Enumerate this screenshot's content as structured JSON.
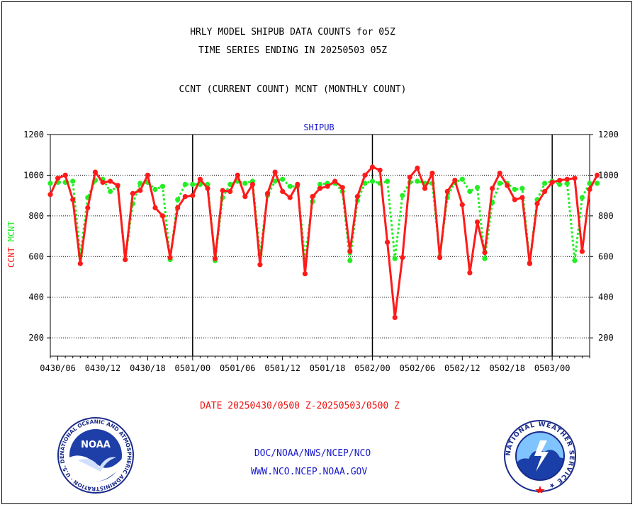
{
  "header": {
    "title_line1": "HRLY MODEL SHIPUB DATA COUNTS for 05Z",
    "title_line2": "TIME SERIES ENDING IN 20250503 05Z",
    "subtitle": "CCNT (CURRENT COUNT) MCNT (MONTHLY COUNT)"
  },
  "footer": {
    "date_range": "DATE 20250430/0500 Z-20250503/0500 Z",
    "org_path": "DOC/NOAA/NWS/NCEP/NCO",
    "website": "WWW.NCO.NCEP.NOAA.GOV"
  },
  "logos": {
    "noaa_text": "NOAA",
    "noaa_ring": "NATIONAL OCEANIC AND ATMOSPHERIC ADMINISTRATION · U.S. DEPARTMENT OF COMMERCE ·",
    "nws_ring": "NATIONAL WEATHER SERVICE ★"
  },
  "colors": {
    "ccnt": "#ff1a1a",
    "mcnt": "#22ee22",
    "label_blue": "#1a1acc",
    "date_red": "#ee1111"
  },
  "chart_data": {
    "type": "line",
    "title": "SHIPUB",
    "ylabel_left": [
      "CCNT",
      "MCNT"
    ],
    "ylim": [
      110,
      1200
    ],
    "yticks": [
      200,
      400,
      600,
      800,
      1000,
      1200
    ],
    "grid": "horizontal dotted at 1000, 800, 600, 400, 200",
    "x_unit": "hours since 20250430/0500 Z",
    "xlim": [
      0,
      72
    ],
    "xtick_hours": [
      1,
      7,
      13,
      19,
      25,
      31,
      37,
      43,
      49,
      55,
      61,
      67,
      73
    ],
    "xtick_labels": [
      "0430/06",
      "0430/12",
      "0430/18",
      "0501/00",
      "0501/06",
      "0501/12",
      "0501/18",
      "0502/00",
      "0502/06",
      "0502/12",
      "0502/18",
      "0503/00",
      ""
    ],
    "day_boundaries": [
      19,
      43,
      67
    ],
    "series": [
      {
        "name": "CCNT",
        "color": "#ff1a1a",
        "values": [
          905,
          985,
          1000,
          880,
          565,
          840,
          1015,
          965,
          970,
          950,
          585,
          910,
          925,
          1000,
          840,
          800,
          595,
          840,
          895,
          900,
          980,
          935,
          590,
          925,
          920,
          1000,
          895,
          955,
          560,
          910,
          1015,
          920,
          890,
          955,
          515,
          895,
          935,
          945,
          970,
          940,
          625,
          895,
          1000,
          1040,
          1025,
          670,
          300,
          595,
          990,
          1035,
          935,
          1010,
          595,
          920,
          975,
          855,
          520,
          770,
          620,
          935,
          1010,
          950,
          880,
          890,
          565,
          860,
          920,
          965,
          975,
          980,
          985,
          625,
          930,
          1000
        ]
      },
      {
        "name": "MCNT",
        "color": "#22ee22",
        "values": [
          960,
          965,
          965,
          970,
          605,
          890,
          975,
          980,
          920,
          945,
          585,
          860,
          960,
          965,
          930,
          945,
          585,
          880,
          955,
          955,
          955,
          955,
          580,
          890,
          955,
          970,
          960,
          970,
          610,
          900,
          970,
          980,
          945,
          945,
          590,
          870,
          955,
          960,
          960,
          920,
          580,
          875,
          960,
          970,
          960,
          970,
          590,
          900,
          965,
          970,
          960,
          960,
          600,
          890,
          965,
          980,
          920,
          940,
          590,
          865,
          960,
          960,
          930,
          935,
          570,
          880,
          960,
          970,
          955,
          960,
          580,
          890,
          960,
          960
        ]
      }
    ]
  }
}
